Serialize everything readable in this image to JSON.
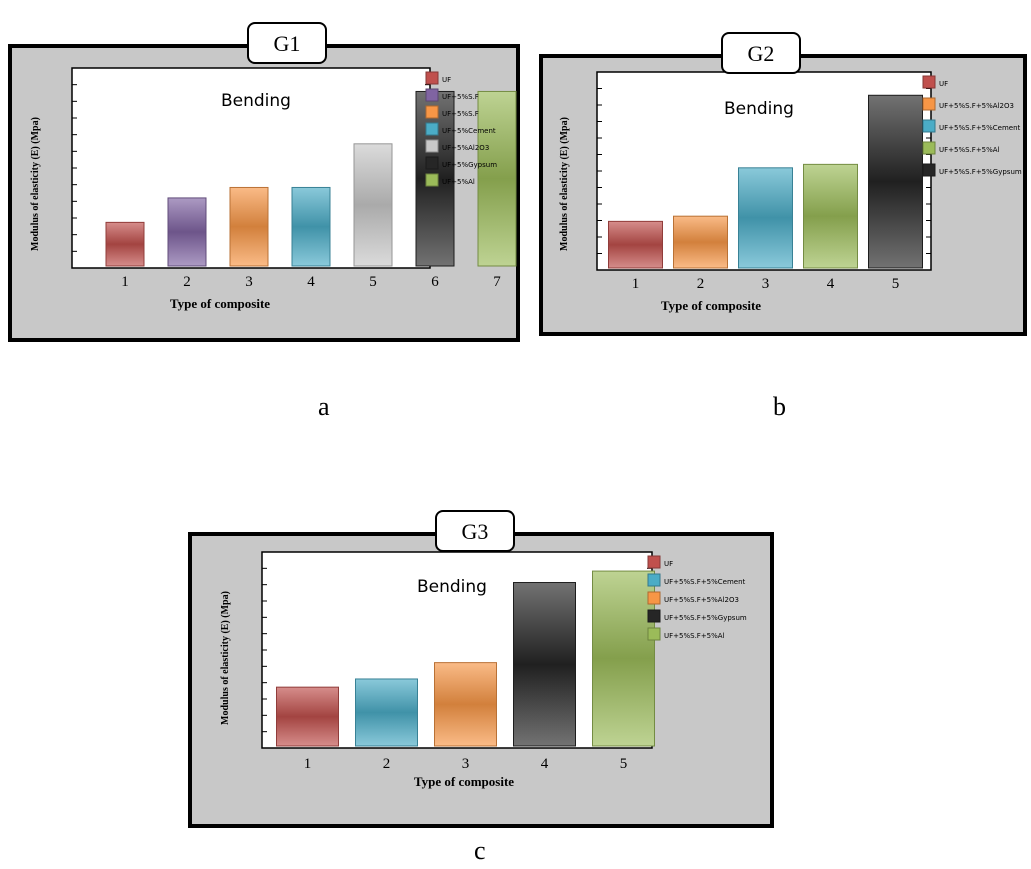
{
  "figure": {
    "sublabels": [
      "a",
      "b",
      "c"
    ]
  },
  "chart_data": [
    {
      "type": "bar",
      "panel_title": "G1",
      "annotation": "Bending",
      "xlabel": "Type of composite",
      "ylabel": "Modulus of elasticity (E) (Mpa)",
      "categories": [
        "1",
        "2",
        "3",
        "4",
        "5",
        "6",
        "7"
      ],
      "values": [
        0.25,
        0.39,
        0.45,
        0.45,
        0.7,
        1.0,
        1.0
      ],
      "value_scale": "relative (y-axis tick labels not legible)",
      "ylim": [
        0,
        1.1
      ],
      "legend_position": "right",
      "legend": [
        "UF",
        "UF+5%S.F",
        "UF+5%S.F",
        "UF+5%Cement",
        "UF+5%Al2O3",
        "UF+5%Gypsum",
        "UF+5%Al"
      ],
      "colors": [
        "#c0504d",
        "#8064a2",
        "#f79646",
        "#4bacc6",
        "#c8c8c8",
        "#262626",
        "#9bbb59"
      ]
    },
    {
      "type": "bar",
      "panel_title": "G2",
      "annotation": "Bending",
      "xlabel": "Type of composite",
      "ylabel": "Modulus of elasticity (E) (Mpa)",
      "categories": [
        "1",
        "2",
        "3",
        "4",
        "5"
      ],
      "values": [
        0.27,
        0.3,
        0.58,
        0.6,
        1.0
      ],
      "value_scale": "relative (y-axis tick labels not legible)",
      "ylim": [
        0,
        1.1
      ],
      "legend_position": "right",
      "legend": [
        "UF",
        "UF+5%S.F+5%Al2O3",
        "UF+5%S.F+5%Cement",
        "UF+5%S.F+5%Al",
        "UF+5%S.F+5%Gypsum"
      ],
      "colors": [
        "#c0504d",
        "#f79646",
        "#4bacc6",
        "#9bbb59",
        "#262626"
      ]
    },
    {
      "type": "bar",
      "panel_title": "G3",
      "annotation": "Bending",
      "xlabel": "Type of composite",
      "ylabel": "Modulus of elasticity (E) (Mpa)",
      "categories": [
        "1",
        "2",
        "3",
        "4",
        "5"
      ],
      "values": [
        0.36,
        0.41,
        0.51,
        1.0,
        1.07
      ],
      "value_scale": "relative (y-axis tick labels not legible)",
      "ylim": [
        0,
        1.15
      ],
      "legend_position": "right",
      "legend": [
        "UF",
        "UF+5%S.F+5%Cement",
        "UF+5%S.F+5%Al2O3",
        "UF+5%S.F+5%Gypsum",
        "UF+5%S.F+5%Al"
      ],
      "colors": [
        "#c0504d",
        "#4bacc6",
        "#f79646",
        "#262626",
        "#9bbb59"
      ]
    }
  ]
}
